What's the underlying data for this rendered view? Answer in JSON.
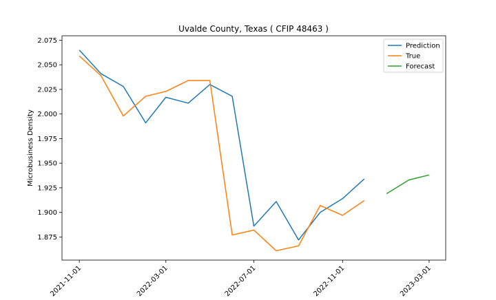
{
  "chart_data": {
    "type": "line",
    "title": "Uvalde County, Texas ( CFIP 48463 )",
    "xlabel": "",
    "ylabel": "Microbusiness Density",
    "x_ticks": [
      "2021-11-01",
      "2022-03-01",
      "2022-07-01",
      "2022-11-01",
      "2023-03-01"
    ],
    "y_ticks": [
      "1.875",
      "1.900",
      "1.925",
      "1.950",
      "1.975",
      "2.000",
      "2.025",
      "2.050",
      "2.075"
    ],
    "xlim": [
      "2021-10-08",
      "2023-03-24"
    ],
    "ylim": [
      1.8515,
      2.0795
    ],
    "grid": false,
    "legend_position": "top-right",
    "series": [
      {
        "name": "Prediction",
        "color": "#1f77b4",
        "points": [
          [
            "2021-11-01",
            2.065
          ],
          [
            "2021-12-01",
            2.041
          ],
          [
            "2022-01-01",
            2.028
          ],
          [
            "2022-02-01",
            1.991
          ],
          [
            "2022-03-01",
            2.017
          ],
          [
            "2022-04-01",
            2.011
          ],
          [
            "2022-05-01",
            2.03
          ],
          [
            "2022-06-01",
            2.018
          ],
          [
            "2022-07-01",
            1.886
          ],
          [
            "2022-08-01",
            1.911
          ],
          [
            "2022-09-01",
            1.872
          ],
          [
            "2022-10-01",
            1.9
          ],
          [
            "2022-11-01",
            1.914
          ],
          [
            "2022-12-01",
            1.934
          ]
        ]
      },
      {
        "name": "True",
        "color": "#ff7f0e",
        "points": [
          [
            "2021-11-01",
            2.059
          ],
          [
            "2021-12-01",
            2.039
          ],
          [
            "2022-01-01",
            1.998
          ],
          [
            "2022-02-01",
            2.018
          ],
          [
            "2022-03-01",
            2.023
          ],
          [
            "2022-04-01",
            2.034
          ],
          [
            "2022-05-01",
            2.034
          ],
          [
            "2022-06-01",
            1.877
          ],
          [
            "2022-07-01",
            1.882
          ],
          [
            "2022-08-01",
            1.861
          ],
          [
            "2022-09-01",
            1.866
          ],
          [
            "2022-10-01",
            1.907
          ],
          [
            "2022-11-01",
            1.897
          ],
          [
            "2022-12-01",
            1.912
          ]
        ]
      },
      {
        "name": "Forecast",
        "color": "#2ca02c",
        "points": [
          [
            "2023-01-01",
            1.919
          ],
          [
            "2023-02-01",
            1.933
          ],
          [
            "2023-03-01",
            1.938
          ]
        ]
      }
    ]
  }
}
